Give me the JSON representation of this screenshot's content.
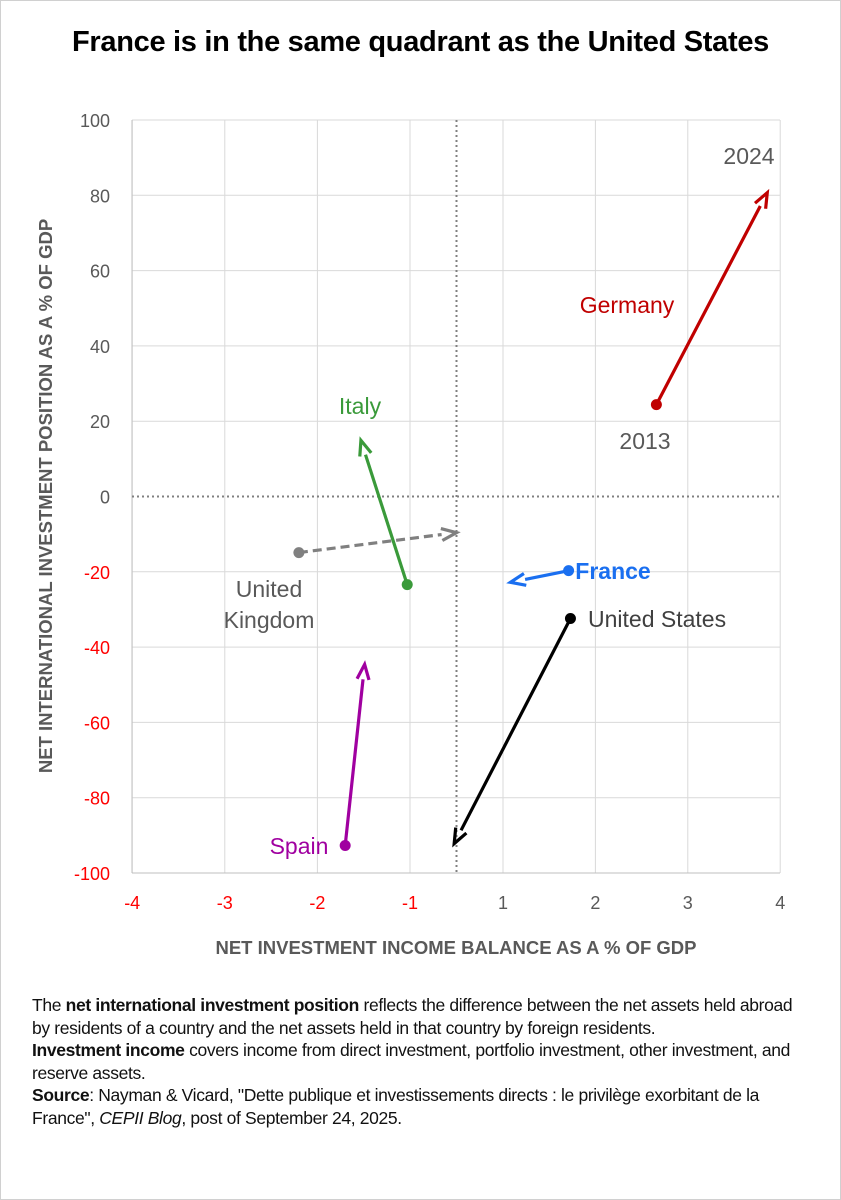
{
  "chart_data": {
    "type": "scatter",
    "title": "France is in the same quadrant as the United States",
    "xlabel": "NET INVESTMENT INCOME BALANCE AS A % OF GDP",
    "ylabel": "NET INTERNATIONAL INVESTMENT POSITION AS A % OF GDP",
    "xlim": [
      -4,
      4
    ],
    "ylim": [
      -100,
      100
    ],
    "x_ticks": [
      -4,
      -3,
      -2,
      -1,
      1,
      2,
      3,
      4
    ],
    "y_ticks": [
      100,
      80,
      60,
      40,
      20,
      0,
      -20,
      -40,
      -60,
      -80,
      -100
    ],
    "negative_tick_color": "#ff0000",
    "positive_tick_color": "#595959",
    "grid": true,
    "reference_lines": {
      "x": 0,
      "y": 0,
      "style": "dotted"
    },
    "start_label": "2013",
    "end_label": "2024",
    "series": [
      {
        "name": "Germany",
        "color": "#c00000",
        "dashed": false,
        "start": [
          2.66,
          24.4
        ],
        "end": [
          3.86,
          80.7
        ]
      },
      {
        "name": "Italy",
        "color": "#3a9a3a",
        "dashed": false,
        "start": [
          -1.03,
          -23.4
        ],
        "end": [
          -1.53,
          14.9
        ]
      },
      {
        "name": "United Kingdom",
        "name_lines": [
          "United",
          "Kingdom"
        ],
        "color": "#808080",
        "dashed": true,
        "start": [
          -2.2,
          -14.9
        ],
        "end": [
          0.0,
          -9.6
        ]
      },
      {
        "name": "France",
        "color": "#1a6ff0",
        "dashed": false,
        "start": [
          1.71,
          -19.7
        ],
        "end": [
          1.08,
          -22.8
        ]
      },
      {
        "name": "United States",
        "color": "#000000",
        "dashed": false,
        "start": [
          1.73,
          -32.4
        ],
        "end": [
          -0.05,
          -92.2
        ]
      },
      {
        "name": "Spain",
        "color": "#a000a0",
        "dashed": false,
        "start": [
          -1.7,
          -92.7
        ],
        "end": [
          -1.49,
          -44.6
        ]
      }
    ]
  },
  "notes": {
    "p1_bold": "net international investment position",
    "p1_pre": "The ",
    "p1_post": " reflects the difference between the net assets held abroad",
    "p1_line2": "by residents of a country and the net assets held in that country by foreign residents.",
    "p2_bold": "Investment income",
    "p2_post": " covers income from direct investment, portfolio investment, other investment, and",
    "p2_line2": "reserve assets.",
    "p3_bold": "Source",
    "p3_post": ": Nayman & Vicard, \"Dette publique et investissements directs : le privilège exorbitant de la",
    "p3_line2_pre": "France\", ",
    "p3_italic": "CEPII Blog",
    "p3_line2_post": ", post of September 24, 2025."
  }
}
